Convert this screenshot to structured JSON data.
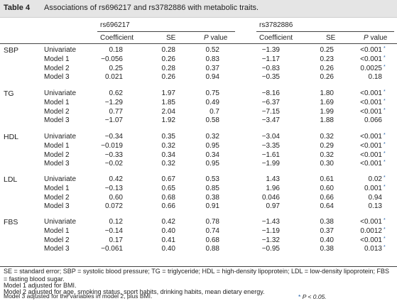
{
  "table": {
    "label": "Table 4",
    "caption": "Associations of rs696217 and rs3782886 with metabolic traits.",
    "snp1": "rs696217",
    "snp2": "rs3782886",
    "col_coef": "Coefficient",
    "col_se": "SE",
    "col_p": "P value",
    "groups": [
      {
        "name": "SBP",
        "rows": [
          {
            "model": "Univariate",
            "c1": "0.18",
            "s1": "0.28",
            "p1": "0.52",
            "c2": "−1.39",
            "s2": "0.25",
            "p2": "<0.001",
            "star": true
          },
          {
            "model": "Model 1",
            "c1": "−0.056",
            "s1": "0.26",
            "p1": "0.83",
            "c2": "−1.17",
            "s2": "0.23",
            "p2": "<0.001",
            "star": true
          },
          {
            "model": "Model 2",
            "c1": "0.25",
            "s1": "0.28",
            "p1": "0.37",
            "c2": "−0.83",
            "s2": "0.26",
            "p2": "0.0025",
            "star": true
          },
          {
            "model": "Model 3",
            "c1": "0.021",
            "s1": "0.26",
            "p1": "0.94",
            "c2": "−0.35",
            "s2": "0.26",
            "p2": "0.18",
            "star": false
          }
        ]
      },
      {
        "name": "TG",
        "rows": [
          {
            "model": "Univariate",
            "c1": "0.62",
            "s1": "1.97",
            "p1": "0.75",
            "c2": "−8.16",
            "s2": "1.80",
            "p2": "<0.001",
            "star": true
          },
          {
            "model": "Model 1",
            "c1": "−1.29",
            "s1": "1.85",
            "p1": "0.49",
            "c2": "−6.37",
            "s2": "1.69",
            "p2": "<0.001",
            "star": true
          },
          {
            "model": "Model 2",
            "c1": "0.77",
            "s1": "2.04",
            "p1": "0.7",
            "c2": "−7.15",
            "s2": "1.99",
            "p2": "<0.001",
            "star": true
          },
          {
            "model": "Model 3",
            "c1": "−1.07",
            "s1": "1.92",
            "p1": "0.58",
            "c2": "−3.47",
            "s2": "1.88",
            "p2": "0.066",
            "star": false
          }
        ]
      },
      {
        "name": "HDL",
        "rows": [
          {
            "model": "Univariate",
            "c1": "−0.34",
            "s1": "0.35",
            "p1": "0.32",
            "c2": "−3.04",
            "s2": "0.32",
            "p2": "<0.001",
            "star": true
          },
          {
            "model": "Model 1",
            "c1": "−0.019",
            "s1": "0.32",
            "p1": "0.95",
            "c2": "−3.35",
            "s2": "0.29",
            "p2": "<0.001",
            "star": true
          },
          {
            "model": "Model 2",
            "c1": "−0.33",
            "s1": "0.34",
            "p1": "0.34",
            "c2": "−1.61",
            "s2": "0.32",
            "p2": "<0.001",
            "star": true
          },
          {
            "model": "Model 3",
            "c1": "−0.02",
            "s1": "0.32",
            "p1": "0.95",
            "c2": "−1.99",
            "s2": "0.30",
            "p2": "<0.001",
            "star": true
          }
        ]
      },
      {
        "name": "LDL",
        "rows": [
          {
            "model": "Univariate",
            "c1": "0.42",
            "s1": "0.67",
            "p1": "0.53",
            "c2": "1.43",
            "s2": "0.61",
            "p2": "0.02",
            "star": true
          },
          {
            "model": "Model 1",
            "c1": "−0.13",
            "s1": "0.65",
            "p1": "0.85",
            "c2": "1.96",
            "s2": "0.60",
            "p2": "0.001",
            "star": true
          },
          {
            "model": "Model 2",
            "c1": "0.60",
            "s1": "0.68",
            "p1": "0.38",
            "c2": "0.046",
            "s2": "0.66",
            "p2": "0.94",
            "star": false
          },
          {
            "model": "Model 3",
            "c1": "0.072",
            "s1": "0.66",
            "p1": "0.91",
            "c2": "0.97",
            "s2": "0.64",
            "p2": "0.13",
            "star": false
          }
        ]
      },
      {
        "name": "FBS",
        "rows": [
          {
            "model": "Univariate",
            "c1": "0.12",
            "s1": "0.42",
            "p1": "0.78",
            "c2": "−1.43",
            "s2": "0.38",
            "p2": "<0.001",
            "star": true
          },
          {
            "model": "Model 1",
            "c1": "−0.14",
            "s1": "0.40",
            "p1": "0.74",
            "c2": "−1.19",
            "s2": "0.37",
            "p2": "0.0012",
            "star": true
          },
          {
            "model": "Model 2",
            "c1": "0.17",
            "s1": "0.41",
            "p1": "0.68",
            "c2": "−1.32",
            "s2": "0.40",
            "p2": "<0.001",
            "star": true
          },
          {
            "model": "Model 3",
            "c1": "−0.061",
            "s1": "0.40",
            "p1": "0.88",
            "c2": "−0.95",
            "s2": "0.38",
            "p2": "0.013",
            "star": true
          }
        ]
      }
    ],
    "footnotes": [
      "SE = standard error; SBP = systolic blood pressure; TG = triglyceride; HDL = high-density lipoprotein; LDL = low-density lipoprotein; FBS = fasting blood sugar.",
      "Model 1 adjusted for BMI.",
      "Model 2 adjusted for age, smoking status, sport habits, drinking habits, mean dietary energy.",
      "Model 3 adjusted for the variables in model 2, plus BMI.",
      "P < 0.05."
    ],
    "footnote_marker": "*",
    "star_color": "#1f5fa8"
  }
}
